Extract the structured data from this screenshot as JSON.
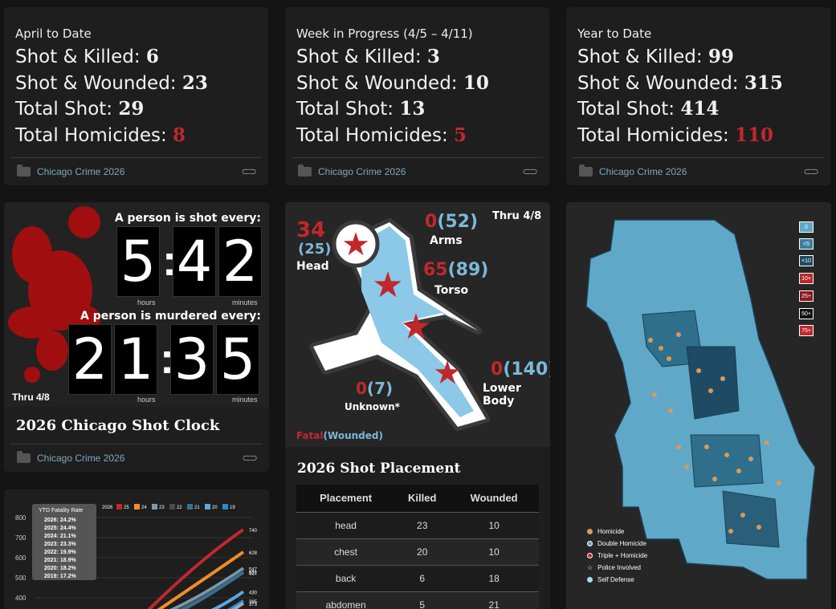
{
  "stats": [
    {
      "subtitle": "April to Date",
      "killed_label": "Shot & Killed:",
      "killed": "6",
      "wounded_label": "Shot & Wounded:",
      "wounded": "23",
      "total_label": "Total Shot:",
      "total": "29",
      "hom_label": "Total Homicides:",
      "hom": "8",
      "category": "Chicago Crime 2026"
    },
    {
      "subtitle": "Week in Progress (4/5 – 4/11)",
      "killed_label": "Shot & Killed:",
      "killed": "3",
      "wounded_label": "Shot & Wounded:",
      "wounded": "10",
      "total_label": "Total Shot:",
      "total": "13",
      "hom_label": "Total Homicides:",
      "hom": "5",
      "category": "Chicago Crime 2026"
    },
    {
      "subtitle": "Year to Date",
      "killed_label": "Shot & Killed:",
      "killed": "99",
      "wounded_label": "Shot & Wounded:",
      "wounded": "315",
      "total_label": "Total Shot:",
      "total": "414",
      "hom_label": "Total Homicides:",
      "hom": "110",
      "category": "Chicago Crime 2026"
    }
  ],
  "clock": {
    "shot_label": "A person is shot every:",
    "shot_digits": [
      "5",
      "4",
      "2"
    ],
    "murder_label": "A person is murdered every:",
    "murder_digits": [
      "2",
      "1",
      "3",
      "5"
    ],
    "hours": "hours",
    "minutes": "minutes",
    "thru": "Thru 4/8",
    "title": "2026 Chicago Shot Clock",
    "category": "Chicago Crime 2026"
  },
  "placement": {
    "thru": "Thru 4/8",
    "head": {
      "fatal": "34",
      "wounded": "(25)",
      "label": "Head"
    },
    "arms": {
      "fatal": "0",
      "wounded": "(52)",
      "label": "Arms"
    },
    "torso": {
      "fatal": "65",
      "wounded": "(89)",
      "label": "Torso"
    },
    "lower": {
      "fatal": "0",
      "wounded": "(140)",
      "label": "Lower Body"
    },
    "unknown": {
      "fatal": "0",
      "wounded": "(7)",
      "label": "Unknown*"
    },
    "legend_fatal": "Fatal",
    "legend_wounded": "(Wounded)",
    "title": "2026 Shot Placement",
    "table_headers": [
      "Placement",
      "Killed",
      "Wounded"
    ],
    "rows": [
      [
        "head",
        "23",
        "10"
      ],
      [
        "chest",
        "20",
        "10"
      ],
      [
        "back",
        "6",
        "18"
      ],
      [
        "abdomen",
        "5",
        "21"
      ]
    ]
  },
  "map": {
    "legend_boxes": [
      "0",
      "<5",
      "<10",
      "10+",
      "25+",
      "50+",
      "75+"
    ],
    "legend_items": [
      "Homicide",
      "Double Homicide",
      "Triple + Homicide",
      "Police Involved",
      "Self Defense"
    ]
  },
  "chart_data": {
    "type": "line",
    "legend_year_label": "2026",
    "legend": [
      "25",
      "24",
      "23",
      "22",
      "21",
      "20",
      "19"
    ],
    "fatality_title": "YTD Fatality Rate",
    "fatality_rates": [
      "2026: 24.2%",
      "2025: 24.4%",
      "2024: 21.1%",
      "2023: 23.3%",
      "2022: 19.9%",
      "2021: 18.9%",
      "2020: 18.2%",
      "2019: 17.2%"
    ],
    "y_ticks": [
      "800",
      "700",
      "600",
      "500",
      "400"
    ],
    "end_labels": [
      "740",
      "628",
      "547",
      "531",
      "527",
      "430",
      "385",
      "373"
    ],
    "colors": [
      "#c0282c",
      "#f08c28",
      "#7a9aaa",
      "#444d55",
      "#3a6e8e",
      "#5aa8e0",
      "#2a8ad0",
      "#9ab"
    ]
  }
}
